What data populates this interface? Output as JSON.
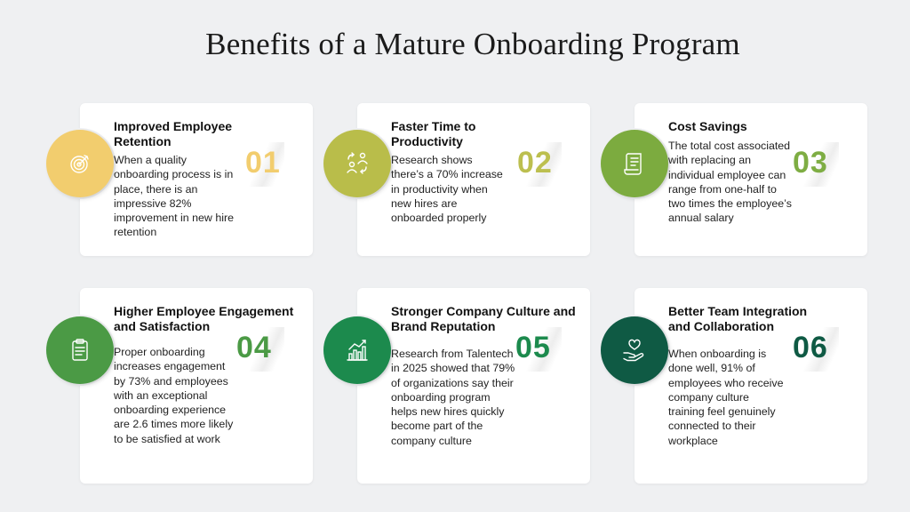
{
  "page": {
    "title": "Benefits of a Mature Onboarding Program"
  },
  "cards": [
    {
      "number": "01",
      "title": "Improved Employee Retention",
      "body": "When a quality onboarding process is in place, there is an impressive 82% improvement in new hire retention",
      "icon": "target-icon",
      "color": "#f2cd6e",
      "number_color": "#f2cd6e"
    },
    {
      "number": "02",
      "title": "Faster Time to Productivity",
      "body": "Research shows there’s a 70% increase in productivity when new hires are onboarded properly",
      "icon": "people-exchange-icon",
      "color": "#b9bd4a",
      "number_color": "#bcbf4f"
    },
    {
      "number": "03",
      "title": "Cost Savings",
      "body": "The total cost associated with replacing an individual employee can range from one-half to two times the employee’s annual salary",
      "icon": "document-scroll-icon",
      "color": "#7cab3f",
      "number_color": "#7ead43"
    },
    {
      "number": "04",
      "title": "Higher Employee Engagement and Satisfaction",
      "body": "Proper onboarding increases engagement by 73% and employees with an exceptional onboarding experience are 2.6 times more likely to be satisfied at work",
      "icon": "clipboard-icon",
      "color": "#4b9a45",
      "number_color": "#4b9a45"
    },
    {
      "number": "05",
      "title": "Stronger Company Culture and Brand Reputation",
      "body": "Research from Talentech in 2025 showed that 79% of organizations say their onboarding program helps new hires quickly become part of the company culture",
      "icon": "growth-chart-icon",
      "color": "#1c8a4d",
      "number_color": "#1c8a4d"
    },
    {
      "number": "06",
      "title": "Better Team Integration and Collaboration",
      "body": "When onboarding is done well, 91% of employees who receive company culture training feel genuinely connected to their workplace",
      "icon": "heart-hand-icon",
      "color": "#0f5a44",
      "number_color": "#0f5a44"
    }
  ]
}
